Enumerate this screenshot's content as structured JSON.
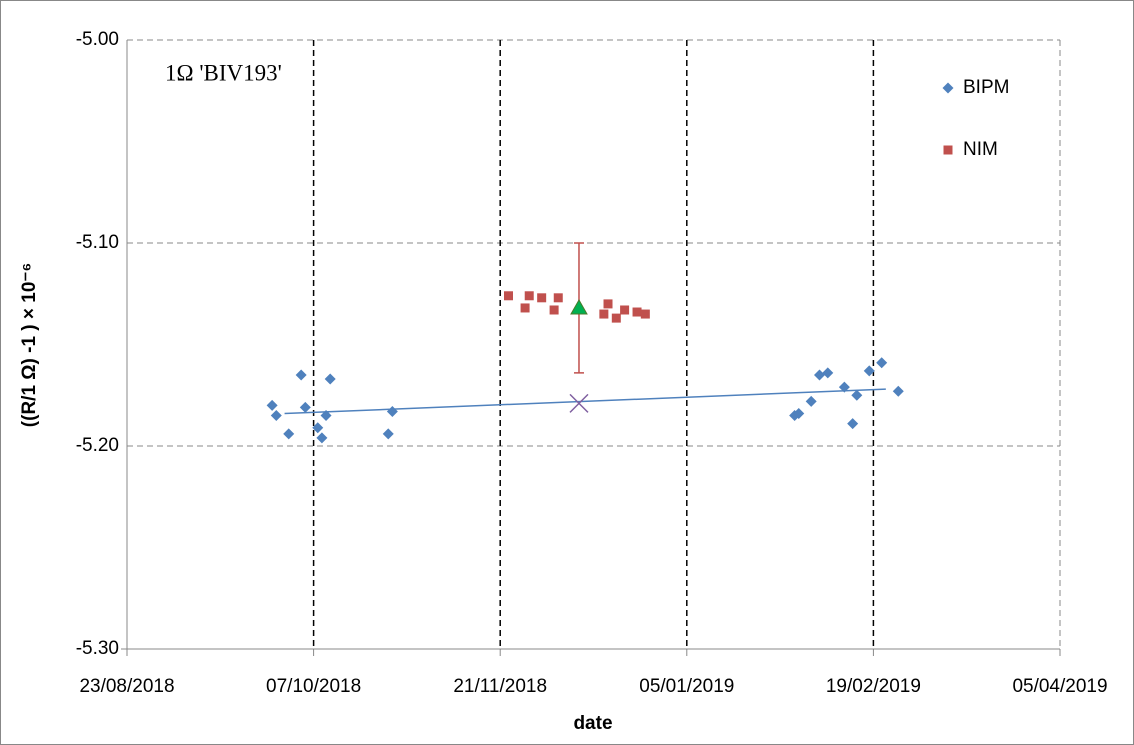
{
  "chart_data": {
    "type": "scatter",
    "annotation": "1Ω 'BIV193'",
    "x_label": "date",
    "y_label": "((R/1 Ω) -1 ) × 10⁻⁶",
    "xlim": [
      "2018-08-23",
      "2019-04-05"
    ],
    "xticks": [
      {
        "value": "2018-08-23",
        "label": "23/08/2018"
      },
      {
        "value": "2018-10-07",
        "label": "07/10/2018"
      },
      {
        "value": "2018-11-21",
        "label": "21/11/2018"
      },
      {
        "value": "2019-01-05",
        "label": "05/01/2019"
      },
      {
        "value": "2019-02-19",
        "label": "19/02/2019"
      },
      {
        "value": "2019-04-05",
        "label": "05/04/2019"
      }
    ],
    "ylim": [
      -5.3,
      -5.0
    ],
    "yticks": [
      {
        "value": -5.3,
        "label": "-5.30"
      },
      {
        "value": -5.2,
        "label": "-5.20"
      },
      {
        "value": -5.1,
        "label": "-5.10"
      },
      {
        "value": -5.0,
        "label": "-5.00"
      }
    ],
    "grid": true,
    "legend": "top-right",
    "series": [
      {
        "name": "BIPM",
        "color": "#4f81bd",
        "marker": "diamond",
        "x": [
          "2018-09-27",
          "2018-09-28",
          "2018-10-01",
          "2018-10-04",
          "2018-10-05",
          "2018-10-08",
          "2018-10-09",
          "2018-10-10",
          "2018-10-11",
          "2018-10-25",
          "2018-10-26",
          "2019-01-31",
          "2019-02-01",
          "2019-02-04",
          "2019-02-06",
          "2019-02-08",
          "2019-02-12",
          "2019-02-14",
          "2019-02-15",
          "2019-02-18",
          "2019-02-21",
          "2019-02-25"
        ],
        "values": [
          -5.18,
          -5.185,
          -5.194,
          -5.165,
          -5.181,
          -5.191,
          -5.196,
          -5.185,
          -5.167,
          -5.194,
          -5.183,
          -5.185,
          -5.184,
          -5.178,
          -5.165,
          -5.164,
          -5.171,
          -5.189,
          -5.175,
          -5.163,
          -5.159,
          -5.173
        ]
      },
      {
        "name": "NIM",
        "color": "#c0504d",
        "marker": "square",
        "x": [
          "2018-11-23",
          "2018-11-27",
          "2018-11-28",
          "2018-12-01",
          "2018-12-04",
          "2018-12-05",
          "2018-12-16",
          "2018-12-17",
          "2018-12-19",
          "2018-12-21",
          "2018-12-24",
          "2018-12-26"
        ],
        "values": [
          -5.126,
          -5.132,
          -5.126,
          -5.127,
          -5.133,
          -5.127,
          -5.135,
          -5.13,
          -5.137,
          -5.133,
          -5.134,
          -5.135
        ]
      },
      {
        "color": "#00b050",
        "marker": "triangle",
        "error_color": "#c0504d",
        "x": [
          "2018-12-10"
        ],
        "values": [
          -5.132
        ],
        "errors": [
          0.032
        ]
      },
      {
        "color": "#4f81bd",
        "marker": "line",
        "x": [
          "2018-09-30",
          "2019-02-22"
        ],
        "values": [
          -5.184,
          -5.172
        ]
      },
      {
        "color": "#7f5fa0",
        "marker": "cross",
        "x": [
          "2018-12-10"
        ],
        "values": [
          -5.179
        ]
      }
    ]
  }
}
